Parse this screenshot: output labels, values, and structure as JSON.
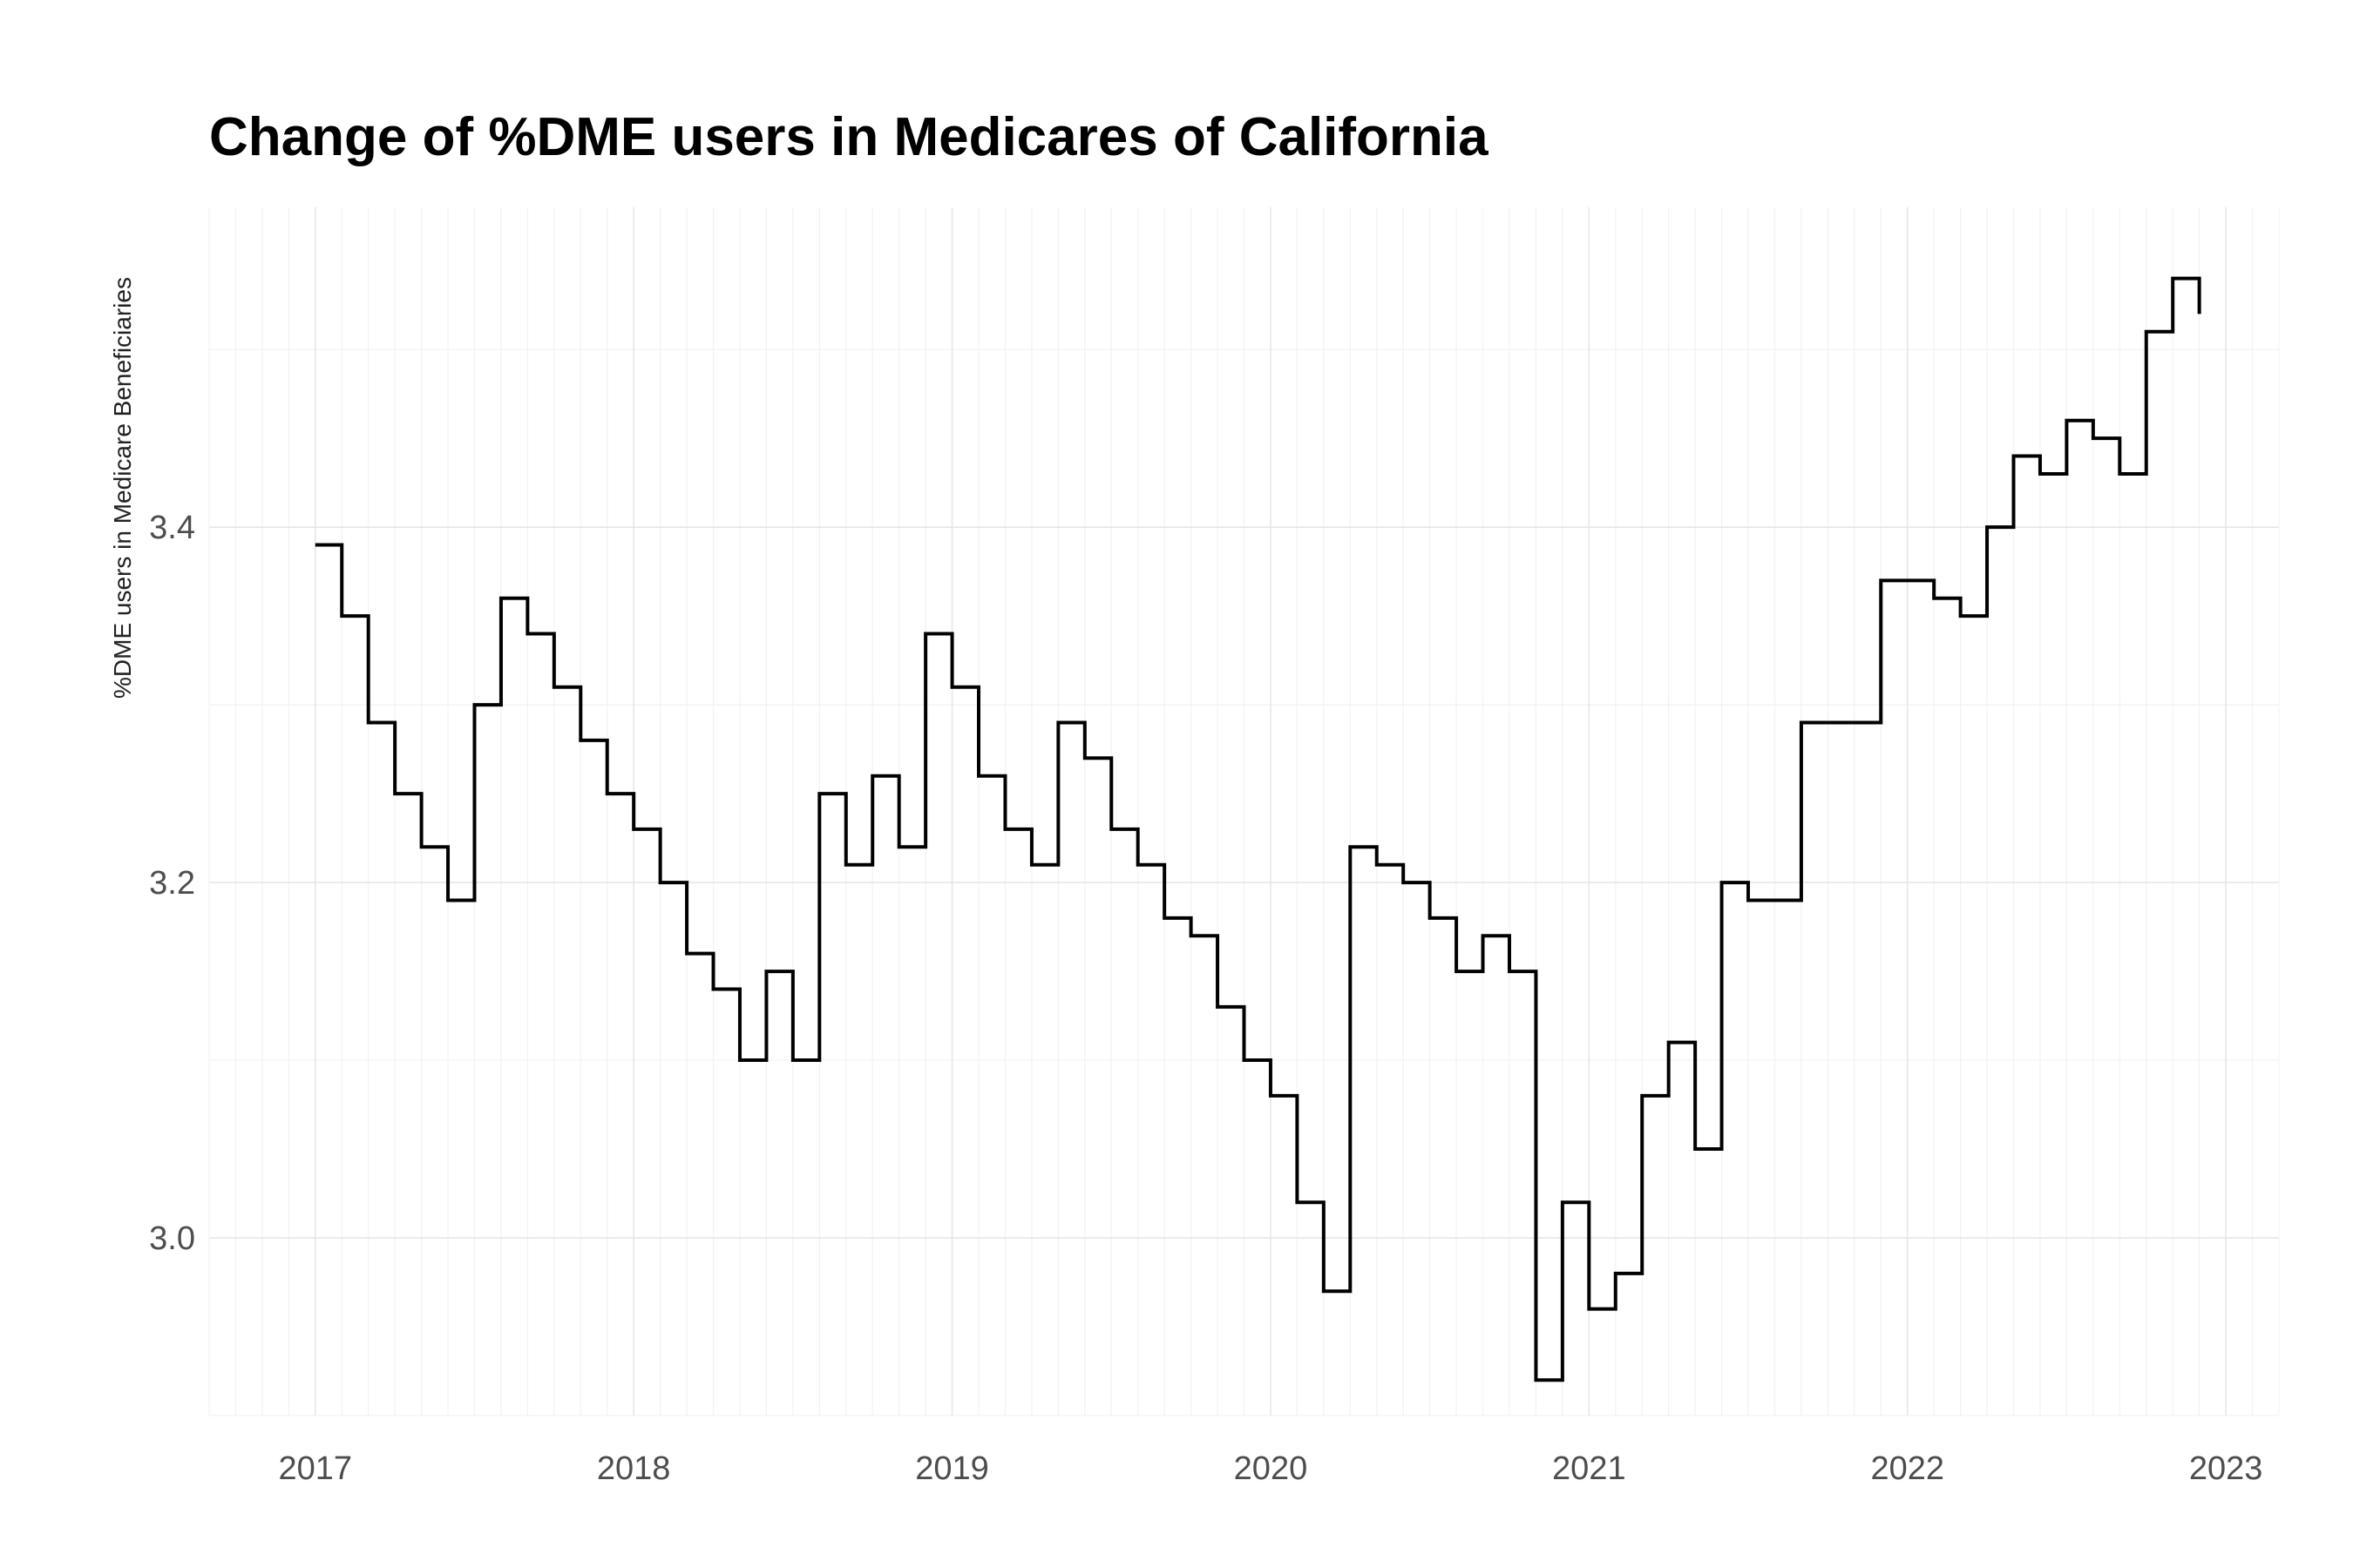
{
  "chart_data": {
    "type": "line",
    "step": true,
    "title": "Change of %DME users in Medicares of California",
    "xlabel": "",
    "ylabel": "%DME users in Medicare Beneficiaries",
    "x_ticks": [
      "2017",
      "2018",
      "2019",
      "2020",
      "2021",
      "2022",
      "2023"
    ],
    "y_ticks": [
      "3.0",
      "3.2",
      "3.4"
    ],
    "y_tick_values": [
      3.0,
      3.2,
      3.4
    ],
    "xlim": [
      "2016-09",
      "2023-03"
    ],
    "ylim": [
      2.9,
      3.58
    ],
    "grid": true,
    "legend": "none",
    "colors": {
      "line": "#000000"
    },
    "series": [
      {
        "x": [
          "2017-01",
          "2017-02",
          "2017-03",
          "2017-04",
          "2017-05",
          "2017-06",
          "2017-07",
          "2017-08",
          "2017-09",
          "2017-10",
          "2017-11",
          "2017-12",
          "2018-01",
          "2018-02",
          "2018-03",
          "2018-04",
          "2018-05",
          "2018-06",
          "2018-07",
          "2018-08",
          "2018-09",
          "2018-10",
          "2018-11",
          "2018-12",
          "2019-01",
          "2019-02",
          "2019-03",
          "2019-04",
          "2019-05",
          "2019-06",
          "2019-07",
          "2019-08",
          "2019-09",
          "2019-10",
          "2019-11",
          "2019-12",
          "2020-01",
          "2020-02",
          "2020-03",
          "2020-04",
          "2020-05",
          "2020-06",
          "2020-07",
          "2020-08",
          "2020-09",
          "2020-10",
          "2020-11",
          "2020-12",
          "2021-01",
          "2021-02",
          "2021-03",
          "2021-04",
          "2021-05",
          "2021-06",
          "2021-07",
          "2021-08",
          "2021-09",
          "2021-10",
          "2021-11",
          "2021-12",
          "2022-01",
          "2022-02",
          "2022-03",
          "2022-04",
          "2022-05",
          "2022-06",
          "2022-07",
          "2022-08",
          "2022-09",
          "2022-10",
          "2022-11",
          "2022-12"
        ],
        "values": [
          3.39,
          3.35,
          3.29,
          3.25,
          3.22,
          3.19,
          3.3,
          3.36,
          3.34,
          3.31,
          3.28,
          3.25,
          3.23,
          3.2,
          3.16,
          3.14,
          3.1,
          3.15,
          3.1,
          3.25,
          3.21,
          3.26,
          3.22,
          3.34,
          3.31,
          3.26,
          3.23,
          3.21,
          3.29,
          3.27,
          3.23,
          3.21,
          3.18,
          3.17,
          3.13,
          3.1,
          3.08,
          3.02,
          2.97,
          3.22,
          3.21,
          3.2,
          3.18,
          3.15,
          3.17,
          3.15,
          2.92,
          3.02,
          2.96,
          2.98,
          3.08,
          3.11,
          3.05,
          3.2,
          3.19,
          3.19,
          3.29,
          3.29,
          3.29,
          3.37,
          3.37,
          3.36,
          3.35,
          3.4,
          3.44,
          3.43,
          3.46,
          3.45,
          3.43,
          3.51,
          3.54,
          3.52
        ]
      }
    ]
  }
}
